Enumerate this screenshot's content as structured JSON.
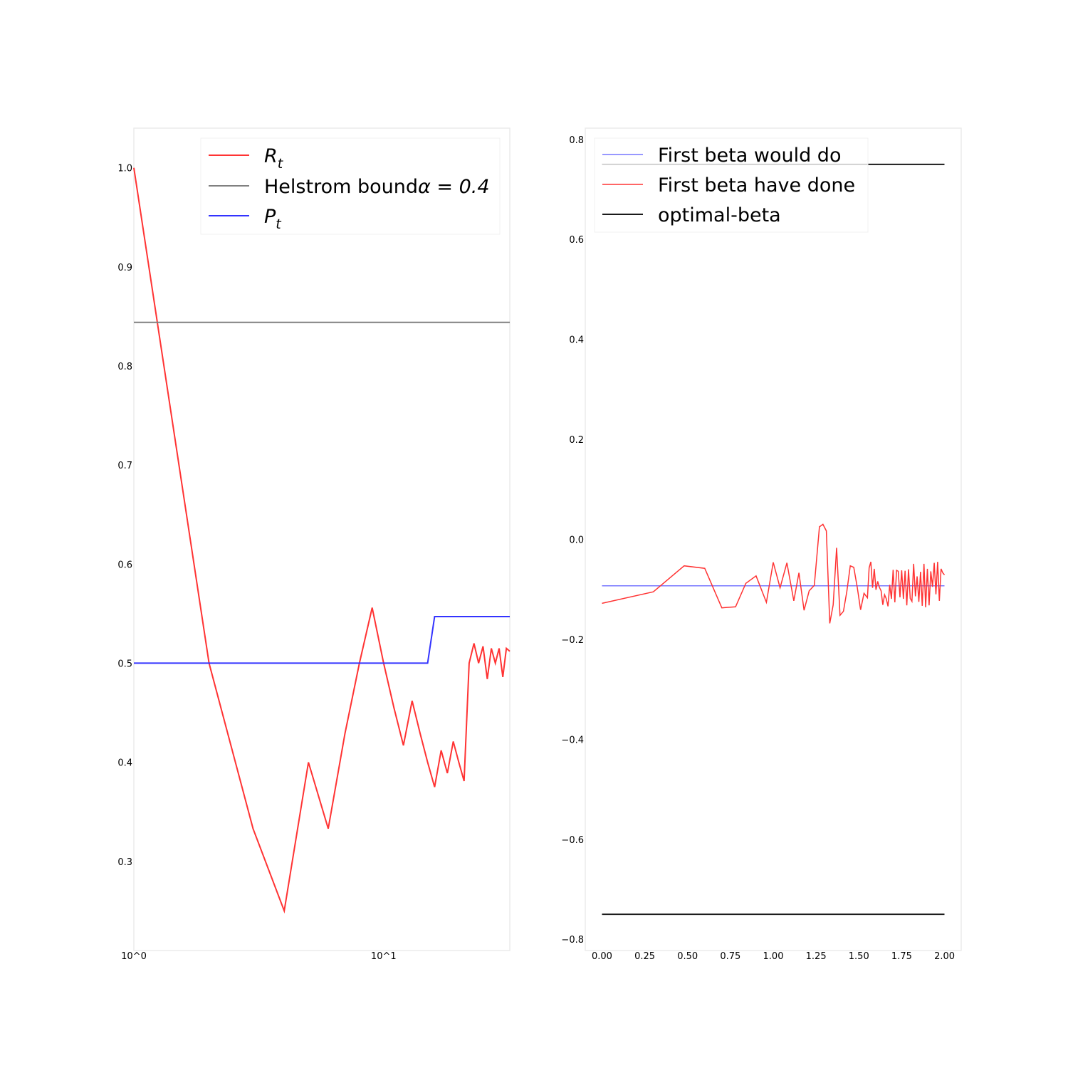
{
  "chart_data": [
    {
      "type": "line",
      "x_scale": "log",
      "xlim": [
        1,
        32
      ],
      "ylim": [
        0.21,
        1.04
      ],
      "grid": false,
      "legend_placement": "upper right",
      "xtick_labels": [
        {
          "x": 1,
          "label": "10^0"
        },
        {
          "x": 10,
          "label": "10^1"
        }
      ],
      "yticks": [
        {
          "y": 0.3,
          "label": "0.3"
        },
        {
          "y": 0.4,
          "label": "0.4"
        },
        {
          "y": 0.5,
          "label": "0.5"
        },
        {
          "y": 0.6,
          "label": "0.6"
        },
        {
          "y": 0.7,
          "label": "0.7"
        },
        {
          "y": 0.8,
          "label": "0.8"
        },
        {
          "y": 0.9,
          "label": "0.9"
        },
        {
          "y": 1.0,
          "label": "1.0"
        }
      ],
      "series": [
        {
          "name": "R_t",
          "legend_main": "R",
          "legend_sub": "t",
          "color": "#ff3333",
          "x": [
            1,
            2,
            3,
            4,
            5,
            6,
            7,
            8,
            9,
            10,
            11,
            12,
            13,
            14,
            15,
            16,
            17,
            18,
            19,
            20,
            21,
            22,
            23,
            24,
            25,
            26,
            27,
            28,
            29,
            30,
            31,
            32
          ],
          "y": [
            1.0,
            0.5,
            0.333,
            0.25,
            0.4,
            0.333,
            0.429,
            0.5,
            0.556,
            0.5,
            0.455,
            0.417,
            0.462,
            0.429,
            0.4,
            0.375,
            0.412,
            0.389,
            0.421,
            0.4,
            0.381,
            0.5,
            0.52,
            0.5,
            0.517,
            0.484,
            0.515,
            0.5,
            0.515,
            0.486,
            0.515,
            0.512
          ]
        },
        {
          "name": "Helstrom bound α = 0.4",
          "legend_main": "Helstrom bound",
          "legend_math": "α = 0.4",
          "color": "#808080",
          "x": [
            1,
            32
          ],
          "y": [
            0.844,
            0.844
          ]
        },
        {
          "name": "P_t",
          "legend_main": "P",
          "legend_sub": "t",
          "color": "#3333ff",
          "x": [
            1,
            15,
            16,
            32
          ],
          "y": [
            0.5,
            0.5,
            0.547,
            0.547
          ]
        }
      ]
    },
    {
      "type": "line",
      "xlim": [
        -0.0975,
        2.0975
      ],
      "ylim": [
        -0.8225,
        0.8225
      ],
      "grid": false,
      "legend_placement": "upper left",
      "xticks": [
        {
          "x": 0.0,
          "label": "0.00"
        },
        {
          "x": 0.25,
          "label": "0.25"
        },
        {
          "x": 0.5,
          "label": "0.50"
        },
        {
          "x": 0.75,
          "label": "0.75"
        },
        {
          "x": 1.0,
          "label": "1.00"
        },
        {
          "x": 1.25,
          "label": "1.25"
        },
        {
          "x": 1.5,
          "label": "1.50"
        },
        {
          "x": 1.75,
          "label": "1.75"
        },
        {
          "x": 2.0,
          "label": "2.00"
        }
      ],
      "yticks": [
        {
          "y": -0.8,
          "label": "−0.8"
        },
        {
          "y": -0.6,
          "label": "−0.6"
        },
        {
          "y": -0.4,
          "label": "−0.4"
        },
        {
          "y": -0.2,
          "label": "−0.2"
        },
        {
          "y": 0.0,
          "label": "0.0"
        },
        {
          "y": 0.2,
          "label": "0.2"
        },
        {
          "y": 0.4,
          "label": "0.4"
        },
        {
          "y": 0.6,
          "label": "0.6"
        },
        {
          "y": 0.8,
          "label": "0.8"
        }
      ],
      "series": [
        {
          "name": "First beta would do",
          "color": "#7777ff",
          "x": [
            0,
            2
          ],
          "y": [
            -0.093,
            -0.093
          ]
        },
        {
          "name": "First beta have done",
          "color": "#ff3333",
          "x": [
            0.0,
            0.3,
            0.48,
            0.6,
            0.7,
            0.78,
            0.84,
            0.9,
            0.96,
            1.0,
            1.04,
            1.08,
            1.12,
            1.15,
            1.18,
            1.21,
            1.24,
            1.27,
            1.29,
            1.31,
            1.33,
            1.35,
            1.37,
            1.39,
            1.41,
            1.43,
            1.45,
            1.47,
            1.49,
            1.51,
            1.53,
            1.55,
            1.56,
            1.57,
            1.58,
            1.59,
            1.6,
            1.61,
            1.62,
            1.63,
            1.64,
            1.65,
            1.66,
            1.67,
            1.68,
            1.69,
            1.7,
            1.71,
            1.72,
            1.73,
            1.74,
            1.75,
            1.76,
            1.77,
            1.78,
            1.79,
            1.8,
            1.81,
            1.82,
            1.83,
            1.84,
            1.85,
            1.86,
            1.87,
            1.88,
            1.89,
            1.9,
            1.91,
            1.92,
            1.93,
            1.94,
            1.95,
            1.96,
            1.97,
            1.98,
            1.99,
            2.0
          ],
          "y": [
            -0.128,
            -0.105,
            -0.053,
            -0.058,
            -0.137,
            -0.135,
            -0.088,
            -0.073,
            -0.126,
            -0.046,
            -0.097,
            -0.047,
            -0.123,
            -0.067,
            -0.142,
            -0.103,
            -0.092,
            0.025,
            0.03,
            0.017,
            -0.168,
            -0.131,
            -0.017,
            -0.152,
            -0.144,
            -0.104,
            -0.053,
            -0.056,
            -0.095,
            -0.141,
            -0.108,
            -0.117,
            -0.057,
            -0.045,
            -0.097,
            -0.059,
            -0.101,
            -0.084,
            -0.096,
            -0.103,
            -0.131,
            -0.111,
            -0.119,
            -0.134,
            -0.091,
            -0.119,
            -0.061,
            -0.126,
            -0.062,
            -0.064,
            -0.116,
            -0.062,
            -0.119,
            -0.063,
            -0.132,
            -0.06,
            -0.118,
            -0.124,
            -0.049,
            -0.114,
            -0.074,
            -0.125,
            -0.065,
            -0.133,
            -0.049,
            -0.136,
            -0.059,
            -0.132,
            -0.064,
            -0.095,
            -0.047,
            -0.11,
            -0.045,
            -0.123,
            -0.059,
            -0.067,
            -0.071
          ]
        },
        {
          "name": "optimal-beta",
          "color": "#1a1a1a",
          "segments": [
            {
              "x": [
                0,
                2
              ],
              "y": [
                0.75,
                0.75
              ]
            },
            {
              "x": [
                0,
                2
              ],
              "y": [
                -0.75,
                -0.75
              ]
            }
          ]
        }
      ]
    }
  ]
}
